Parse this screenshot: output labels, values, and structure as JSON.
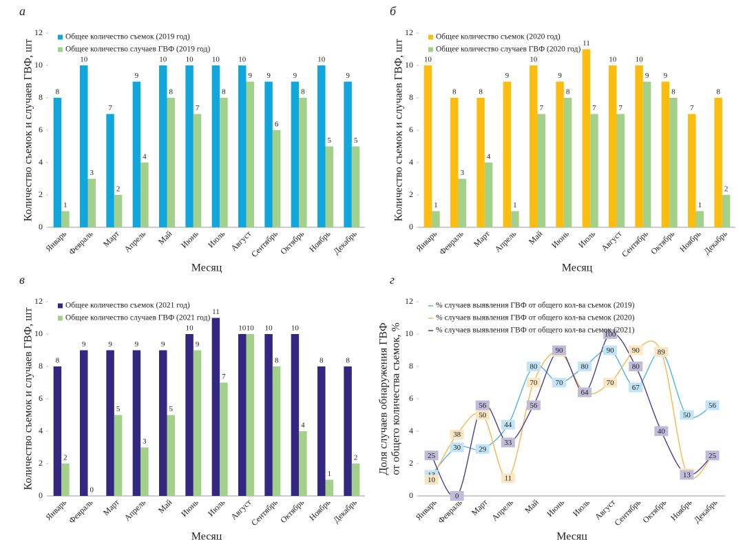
{
  "chart_data": [
    {
      "type": "bar",
      "panel": "а",
      "ylabel": [
        "Количество съемок и случаев ГВФ, шт"
      ],
      "xlabel": "Месяц",
      "categories": [
        "Январь",
        "Февраль",
        "Март",
        "Апрель",
        "Май",
        "Июнь",
        "Июль",
        "Август",
        "Сентябрь",
        "Октябрь",
        "Ноябрь",
        "Декабрь"
      ],
      "series": [
        {
          "name": "Общее количество съемок (2019 год)",
          "color": "#12a7dc",
          "values": [
            8,
            10,
            7,
            9,
            10,
            10,
            10,
            10,
            9,
            9,
            10,
            9
          ]
        },
        {
          "name": "Общее количество случаев ГВФ (2019 год)",
          "color": "#a3d08b",
          "values": [
            1,
            3,
            2,
            4,
            8,
            7,
            8,
            9,
            6,
            8,
            5,
            5
          ]
        }
      ],
      "ylim": [
        0,
        12
      ],
      "yticks": [
        0,
        2,
        4,
        6,
        8,
        10,
        12
      ],
      "legend": "top-left"
    },
    {
      "type": "bar",
      "panel": "б",
      "ylabel": [
        "Количество съемок и случаев ГВФ, шт"
      ],
      "xlabel": "Месяц",
      "categories": [
        "Январь",
        "Февраль",
        "Март",
        "Апрель",
        "Май",
        "Июнь",
        "Июль",
        "Август",
        "Сентябрь",
        "Октябрь",
        "Ноябрь",
        "Декабрь"
      ],
      "series": [
        {
          "name": "Общее количество съемок (2020 год)",
          "color": "#fdbd10",
          "values": [
            10,
            8,
            8,
            9,
            10,
            9,
            11,
            10,
            10,
            9,
            7,
            8
          ]
        },
        {
          "name": "Общее количество случаев ГВФ (2020 год)",
          "color": "#a3d08b",
          "values": [
            1,
            3,
            4,
            1,
            7,
            8,
            7,
            7,
            9,
            8,
            1,
            2
          ]
        }
      ],
      "ylim": [
        0,
        12
      ],
      "yticks": [
        0,
        2,
        4,
        6,
        8,
        10,
        12
      ],
      "legend": "top-left"
    },
    {
      "type": "bar",
      "panel": "в",
      "ylabel": [
        "Количество съемок и случаев ГВФ, шт"
      ],
      "xlabel": "Месяц",
      "categories": [
        "Январь",
        "Февраль",
        "Март",
        "Апрель",
        "Май",
        "Июнь",
        "Июль",
        "Август",
        "Сентябрь",
        "Октябрь",
        "Ноябрь",
        "Декабрь"
      ],
      "series": [
        {
          "name": "Общее количество съемок (2021 год)",
          "color": "#34277f",
          "values": [
            8,
            9,
            9,
            9,
            9,
            10,
            11,
            10,
            10,
            10,
            8,
            8
          ]
        },
        {
          "name": "Общее количество случаев ГВФ (2021 год)",
          "color": "#a3d08b",
          "values": [
            2,
            0,
            5,
            3,
            5,
            9,
            7,
            10,
            8,
            4,
            1,
            2
          ]
        }
      ],
      "ylim": [
        0,
        12
      ],
      "yticks": [
        0,
        2,
        4,
        6,
        8,
        10,
        12
      ],
      "legend": "top-left"
    },
    {
      "type": "line",
      "panel": "г",
      "ylabel": [
        "Доля случаев обнаружения ГВФ",
        "от общего количества съемок, %"
      ],
      "xlabel": "Месяц",
      "categories": [
        "Январь",
        "Февраль",
        "Март",
        "Апрель",
        "Май",
        "Июнь",
        "Июль",
        "Август",
        "Сентябрь",
        "Октябрь",
        "Ноябрь",
        "Декабрь"
      ],
      "series": [
        {
          "name": "% случаев выявления ГВФ от общего кол-ва съемок (2019)",
          "color": "#4fb3e8",
          "values": [
            13,
            30,
            29,
            44,
            80,
            70,
            80,
            90,
            67,
            89,
            50,
            56
          ]
        },
        {
          "name": "% случаев выявления ГВФ от общего кол-ва съемок (2020)",
          "color": "#f2b84b",
          "values": [
            10,
            38,
            50,
            11,
            70,
            89,
            64,
            70,
            90,
            89,
            14,
            25
          ]
        },
        {
          "name": "% случаев выявления ГВФ от общего кол-ва съемок (2021)",
          "color": "#4a3d8f",
          "values": [
            25,
            0,
            56,
            33,
            56,
            90,
            64,
            100,
            80,
            40,
            13,
            25
          ]
        }
      ],
      "ylim": [
        0,
        120
      ],
      "yticks": [
        0,
        {
          "value": 20,
          "label": "2"
        },
        {
          "value": 40,
          "label": "4"
        },
        {
          "value": 60,
          "label": "6"
        },
        {
          "value": 80,
          "label": "8"
        },
        {
          "value": 100,
          "label": "10"
        },
        {
          "value": 120,
          "label": "12"
        }
      ],
      "legend": "top-left"
    }
  ]
}
